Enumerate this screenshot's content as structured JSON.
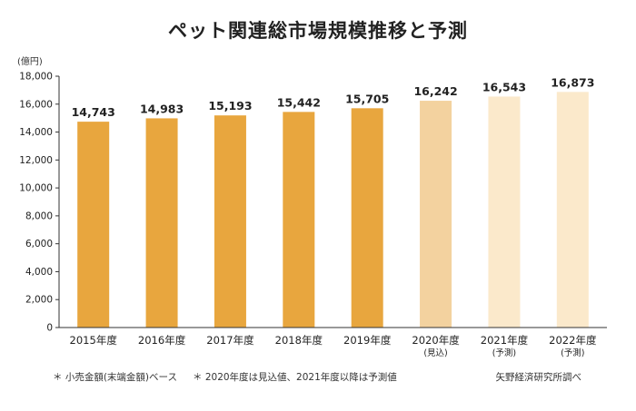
{
  "chart_data": {
    "type": "bar",
    "title": "ペット関連総市場規模推移と予測",
    "ylabel": "(億円)",
    "ylim": [
      0,
      18000
    ],
    "yticks": [
      0,
      2000,
      4000,
      6000,
      8000,
      10000,
      12000,
      14000,
      16000,
      18000
    ],
    "ytick_labels": [
      "0",
      "2,000",
      "4,000",
      "6,000",
      "8,000",
      "10,000",
      "12,000",
      "14,000",
      "16,000",
      "18,000"
    ],
    "categories": [
      {
        "label": "2015年度",
        "sub": ""
      },
      {
        "label": "2016年度",
        "sub": ""
      },
      {
        "label": "2017年度",
        "sub": ""
      },
      {
        "label": "2018年度",
        "sub": ""
      },
      {
        "label": "2019年度",
        "sub": ""
      },
      {
        "label": "2020年度",
        "sub": "(見込)"
      },
      {
        "label": "2021年度",
        "sub": "(予測)"
      },
      {
        "label": "2022年度",
        "sub": "(予測)"
      }
    ],
    "values": [
      14743,
      14983,
      15193,
      15442,
      15705,
      16242,
      16543,
      16873
    ],
    "value_labels": [
      "14,743",
      "14,983",
      "15,193",
      "15,442",
      "15,705",
      "16,242",
      "16,543",
      "16,873"
    ],
    "bar_colors": [
      "#e8a63e",
      "#e8a63e",
      "#e8a63e",
      "#e8a63e",
      "#e8a63e",
      "#f3d29f",
      "#fbe9cb",
      "#fbe9cb"
    ],
    "grid": false
  },
  "footnotes": {
    "note1": "＊ 小売金額(末端金額)ベース",
    "note2": "＊ 2020年度は見込値、2021年度以降は予測値",
    "source": "矢野経済研究所調べ"
  }
}
